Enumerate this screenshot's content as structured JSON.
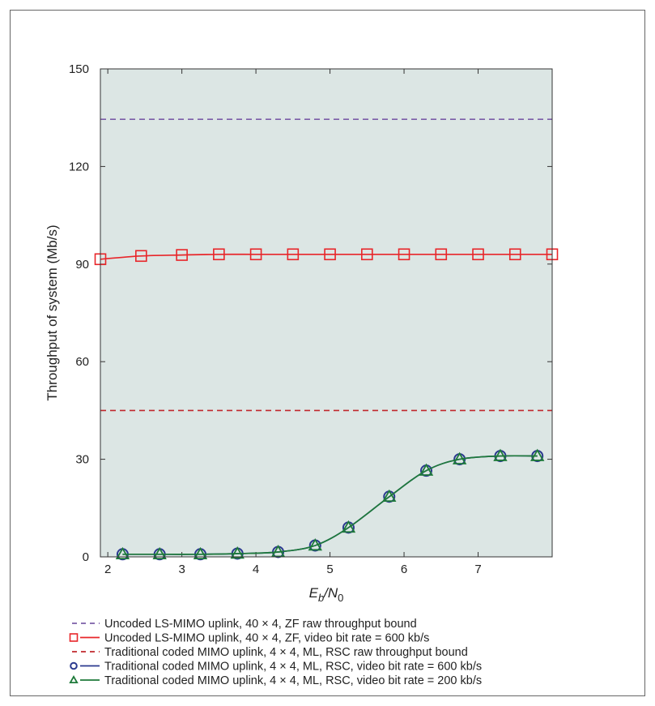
{
  "chart_data": {
    "type": "line",
    "title": "",
    "xlabel": {
      "base": "E",
      "sub1": "b",
      "slash": "/N",
      "sub2": "0"
    },
    "ylabel": "Throughput of system (Mb/s)",
    "xlim": [
      1.9,
      8.0
    ],
    "ylim": [
      0,
      150
    ],
    "xticks": [
      2,
      3,
      4,
      5,
      6,
      7
    ],
    "yticks": [
      0,
      30,
      60,
      90,
      120,
      150
    ],
    "plot_background": "#dce6e4",
    "legend_position": "bottom",
    "series": [
      {
        "name": "Uncoded LS-MIMO uplink, 40 × 4, ZF raw throughput bound",
        "style": "dashed",
        "marker": "none",
        "color": "#7b5ea7",
        "x": [
          1.9,
          8.0
        ],
        "y": [
          134.5,
          134.5
        ]
      },
      {
        "name": "Uncoded LS-MIMO uplink, 40 × 4, ZF, video bit rate = 600 kb/s",
        "style": "solid",
        "marker": "square",
        "color": "#e8262a",
        "x": [
          1.9,
          2.45,
          3.0,
          3.5,
          4.0,
          4.5,
          5.0,
          5.5,
          6.0,
          6.5,
          7.0,
          7.5,
          8.0
        ],
        "y": [
          91.5,
          92.5,
          92.8,
          93,
          93,
          93,
          93,
          93,
          93,
          93,
          93,
          93,
          93
        ]
      },
      {
        "name": "Traditional coded MIMO uplink, 4 × 4, ML, RSC raw throughput bound",
        "style": "dashed",
        "marker": "none",
        "color": "#c0282d",
        "x": [
          1.9,
          8.0
        ],
        "y": [
          45,
          45
        ]
      },
      {
        "name": "Traditional coded MIMO uplink, 4 × 4, ML, RSC, video bit rate = 600 kb/s",
        "style": "solid",
        "marker": "circle",
        "color": "#2b3a8f",
        "x": [
          2.2,
          2.7,
          3.25,
          3.75,
          4.3,
          4.8,
          5.25,
          5.8,
          6.3,
          6.75,
          7.3,
          7.8
        ],
        "y": [
          0.8,
          0.8,
          0.8,
          1.0,
          1.5,
          3.5,
          9,
          18.5,
          26.5,
          30,
          31,
          31
        ]
      },
      {
        "name": "Traditional coded MIMO uplink, 4 × 4, ML, RSC, video bit rate = 200 kb/s",
        "style": "solid",
        "marker": "triangle",
        "color": "#1e7a3a",
        "x": [
          2.2,
          2.7,
          3.25,
          3.75,
          4.3,
          4.8,
          5.25,
          5.8,
          6.3,
          6.75,
          7.3,
          7.8
        ],
        "y": [
          0.8,
          0.8,
          0.8,
          1.0,
          1.5,
          3.5,
          9,
          18.5,
          26.5,
          30,
          31,
          31
        ]
      }
    ]
  }
}
